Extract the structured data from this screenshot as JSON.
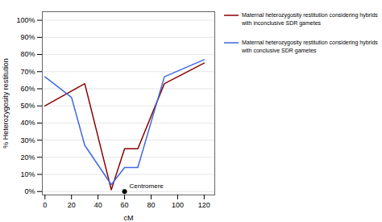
{
  "chart_data": {
    "type": "line",
    "xlabel": "cM",
    "ylabel": "% Heterozygosity restitution",
    "series": [
      {
        "name": "Maternal heterozygosity restitution considering hybrids\nwith inconclusive SDR gametes",
        "color": "#8B0000",
        "x": [
          0,
          30,
          50,
          60,
          70,
          90,
          120
        ],
        "values": [
          0.5,
          0.63,
          0.01,
          0.25,
          0.25,
          0.63,
          0.75
        ]
      },
      {
        "name": "Maternal heterozygosity restitution considering hybrids\nwith conclusive SDR gametes",
        "color": "#4169E1",
        "x": [
          0,
          20,
          30,
          50,
          60,
          70,
          90,
          120
        ],
        "values": [
          0.67,
          0.55,
          0.27,
          0.04,
          0.14,
          0.14,
          0.67,
          0.77
        ]
      }
    ],
    "annotations": [
      {
        "text": "Centromere",
        "x": 60,
        "y": 0.0,
        "color": "black",
        "marker": "circle"
      }
    ],
    "xlim": [
      -2,
      128
    ],
    "xticks": [
      0,
      20,
      40,
      60,
      80,
      100,
      120
    ],
    "ylim": [
      -0.02,
      1.05
    ],
    "yticks": [
      {
        "value": 0.0,
        "label": "0%"
      },
      {
        "value": 0.1,
        "label": "10%"
      },
      {
        "value": 0.2,
        "label": "20%"
      },
      {
        "value": 0.3,
        "label": "30%"
      },
      {
        "value": 0.4,
        "label": "40%"
      },
      {
        "value": 0.5,
        "label": "50%"
      },
      {
        "value": 0.6,
        "label": "60%"
      },
      {
        "value": 0.7,
        "label": "70%"
      },
      {
        "value": 0.8,
        "label": "80%"
      },
      {
        "value": 0.9,
        "label": "90%"
      },
      {
        "value": 1.0,
        "label": "100%"
      }
    ],
    "grid": true,
    "legend": "right"
  }
}
